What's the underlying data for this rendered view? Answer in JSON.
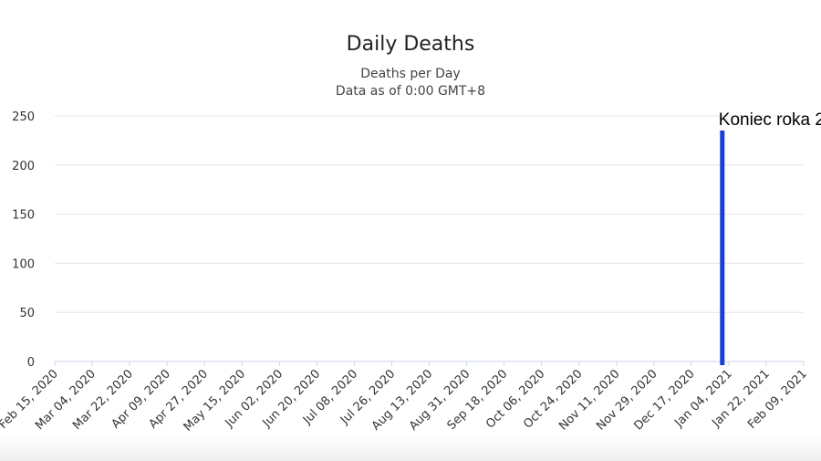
{
  "chart_data": {
    "type": "bar",
    "title": "Daily Deaths",
    "subtitle_lines": [
      "Deaths per Day",
      "Data as of 0:00 GMT+8"
    ],
    "ylabel": "",
    "xlabel": "",
    "ylim": [
      0,
      250
    ],
    "yticks": [
      0,
      50,
      100,
      150,
      200,
      250
    ],
    "grid": true,
    "bar_color": "#a9a9a9",
    "x_start": "2020-02-15",
    "x_end": "2021-02-09",
    "x_tick_labels": [
      "Feb 15, 2020",
      "Mar 04, 2020",
      "Mar 22, 2020",
      "Apr 09, 2020",
      "Apr 27, 2020",
      "May 15, 2020",
      "Jun 02, 2020",
      "Jun 20, 2020",
      "Jul 08, 2020",
      "Jul 26, 2020",
      "Aug 13, 2020",
      "Aug 31, 2020",
      "Sep 18, 2020",
      "Oct 06, 2020",
      "Oct 24, 2020",
      "Nov 11, 2020",
      "Nov 29, 2020",
      "Dec 17, 2020",
      "Jan 04, 2021",
      "Jan 22, 2021",
      "Feb 09, 2021"
    ],
    "series": [
      {
        "values": [
          0,
          0,
          0,
          0,
          0,
          0,
          0,
          0,
          0,
          0,
          0,
          0,
          0,
          0,
          0,
          0,
          0,
          0,
          0,
          0,
          0,
          0,
          0,
          0,
          0,
          0,
          0,
          0,
          0,
          0,
          0,
          0,
          0,
          0,
          0,
          0,
          0,
          0,
          0,
          0,
          0,
          0,
          0,
          0,
          0,
          0,
          0,
          0,
          0,
          0,
          0,
          0,
          0,
          0,
          0,
          0,
          0,
          0,
          0,
          0,
          0,
          0,
          0,
          0,
          0,
          0,
          0,
          0,
          0,
          0,
          0,
          0,
          0,
          0,
          0,
          0,
          0,
          0,
          0,
          0,
          0,
          0,
          0,
          0,
          0,
          0,
          0,
          0,
          0,
          0,
          0,
          0,
          0,
          0,
          0,
          0,
          0,
          0,
          0,
          0,
          0,
          0,
          0,
          0,
          0,
          0,
          0,
          0,
          0,
          0,
          0,
          0,
          0,
          0,
          0,
          0,
          0,
          0,
          0,
          0,
          0,
          0,
          0,
          0,
          0,
          0,
          0,
          0,
          0,
          0,
          0,
          0,
          0,
          0,
          0,
          0,
          0,
          0,
          0,
          0,
          0,
          0,
          0,
          0,
          0,
          0,
          0,
          0,
          0,
          0,
          0,
          0,
          0,
          0,
          0,
          0,
          0,
          0,
          0,
          0,
          0,
          0,
          0,
          0,
          0,
          0,
          0,
          0,
          0,
          0,
          0,
          0,
          0,
          0,
          0,
          0,
          0,
          0,
          0,
          0,
          0,
          0,
          0,
          0,
          0,
          0,
          0,
          0,
          0,
          0,
          0,
          0,
          0,
          0,
          0,
          0,
          0,
          0,
          0,
          0,
          0,
          0,
          0,
          0,
          0,
          0,
          0,
          0,
          0,
          0,
          0,
          0,
          0,
          0,
          0,
          0,
          0,
          0,
          0,
          0,
          0,
          0,
          0,
          0,
          0,
          0,
          0,
          0,
          0,
          0,
          0,
          0,
          0,
          0,
          0,
          0,
          0,
          0,
          0,
          0,
          0,
          0,
          0,
          0,
          0,
          0,
          0,
          0,
          0,
          0,
          0,
          0,
          0,
          0,
          0,
          0,
          0,
          0,
          0,
          0,
          0,
          0,
          0,
          0,
          0,
          0,
          0,
          0,
          0,
          0,
          0,
          0,
          0,
          0,
          0,
          0,
          0,
          0,
          0,
          0,
          0,
          0,
          0,
          0,
          0,
          0,
          0,
          0,
          0,
          0,
          0,
          0,
          0,
          0,
          0,
          0,
          0,
          0,
          0,
          0,
          0,
          0,
          0,
          0,
          0,
          0,
          0,
          0,
          0,
          0,
          0,
          0,
          0,
          0,
          0,
          0,
          0,
          0,
          0,
          0,
          0,
          0,
          0,
          0,
          0,
          0,
          0,
          0,
          0,
          0,
          0,
          0,
          0,
          0,
          0,
          0,
          0,
          0,
          0,
          0,
          0,
          0,
          0,
          0,
          0,
          0,
          0,
          0,
          0,
          0,
          0,
          0,
          0,
          0,
          0,
          0,
          0,
          0,
          0,
          0,
          0,
          0,
          0,
          0,
          0,
          0,
          0,
          0,
          0,
          0,
          0,
          0
        ]
      }
    ],
    "annotations": [
      {
        "text": "Koniec roka 2",
        "date": "2020-12-31",
        "color": "#1a3fd6"
      }
    ]
  }
}
